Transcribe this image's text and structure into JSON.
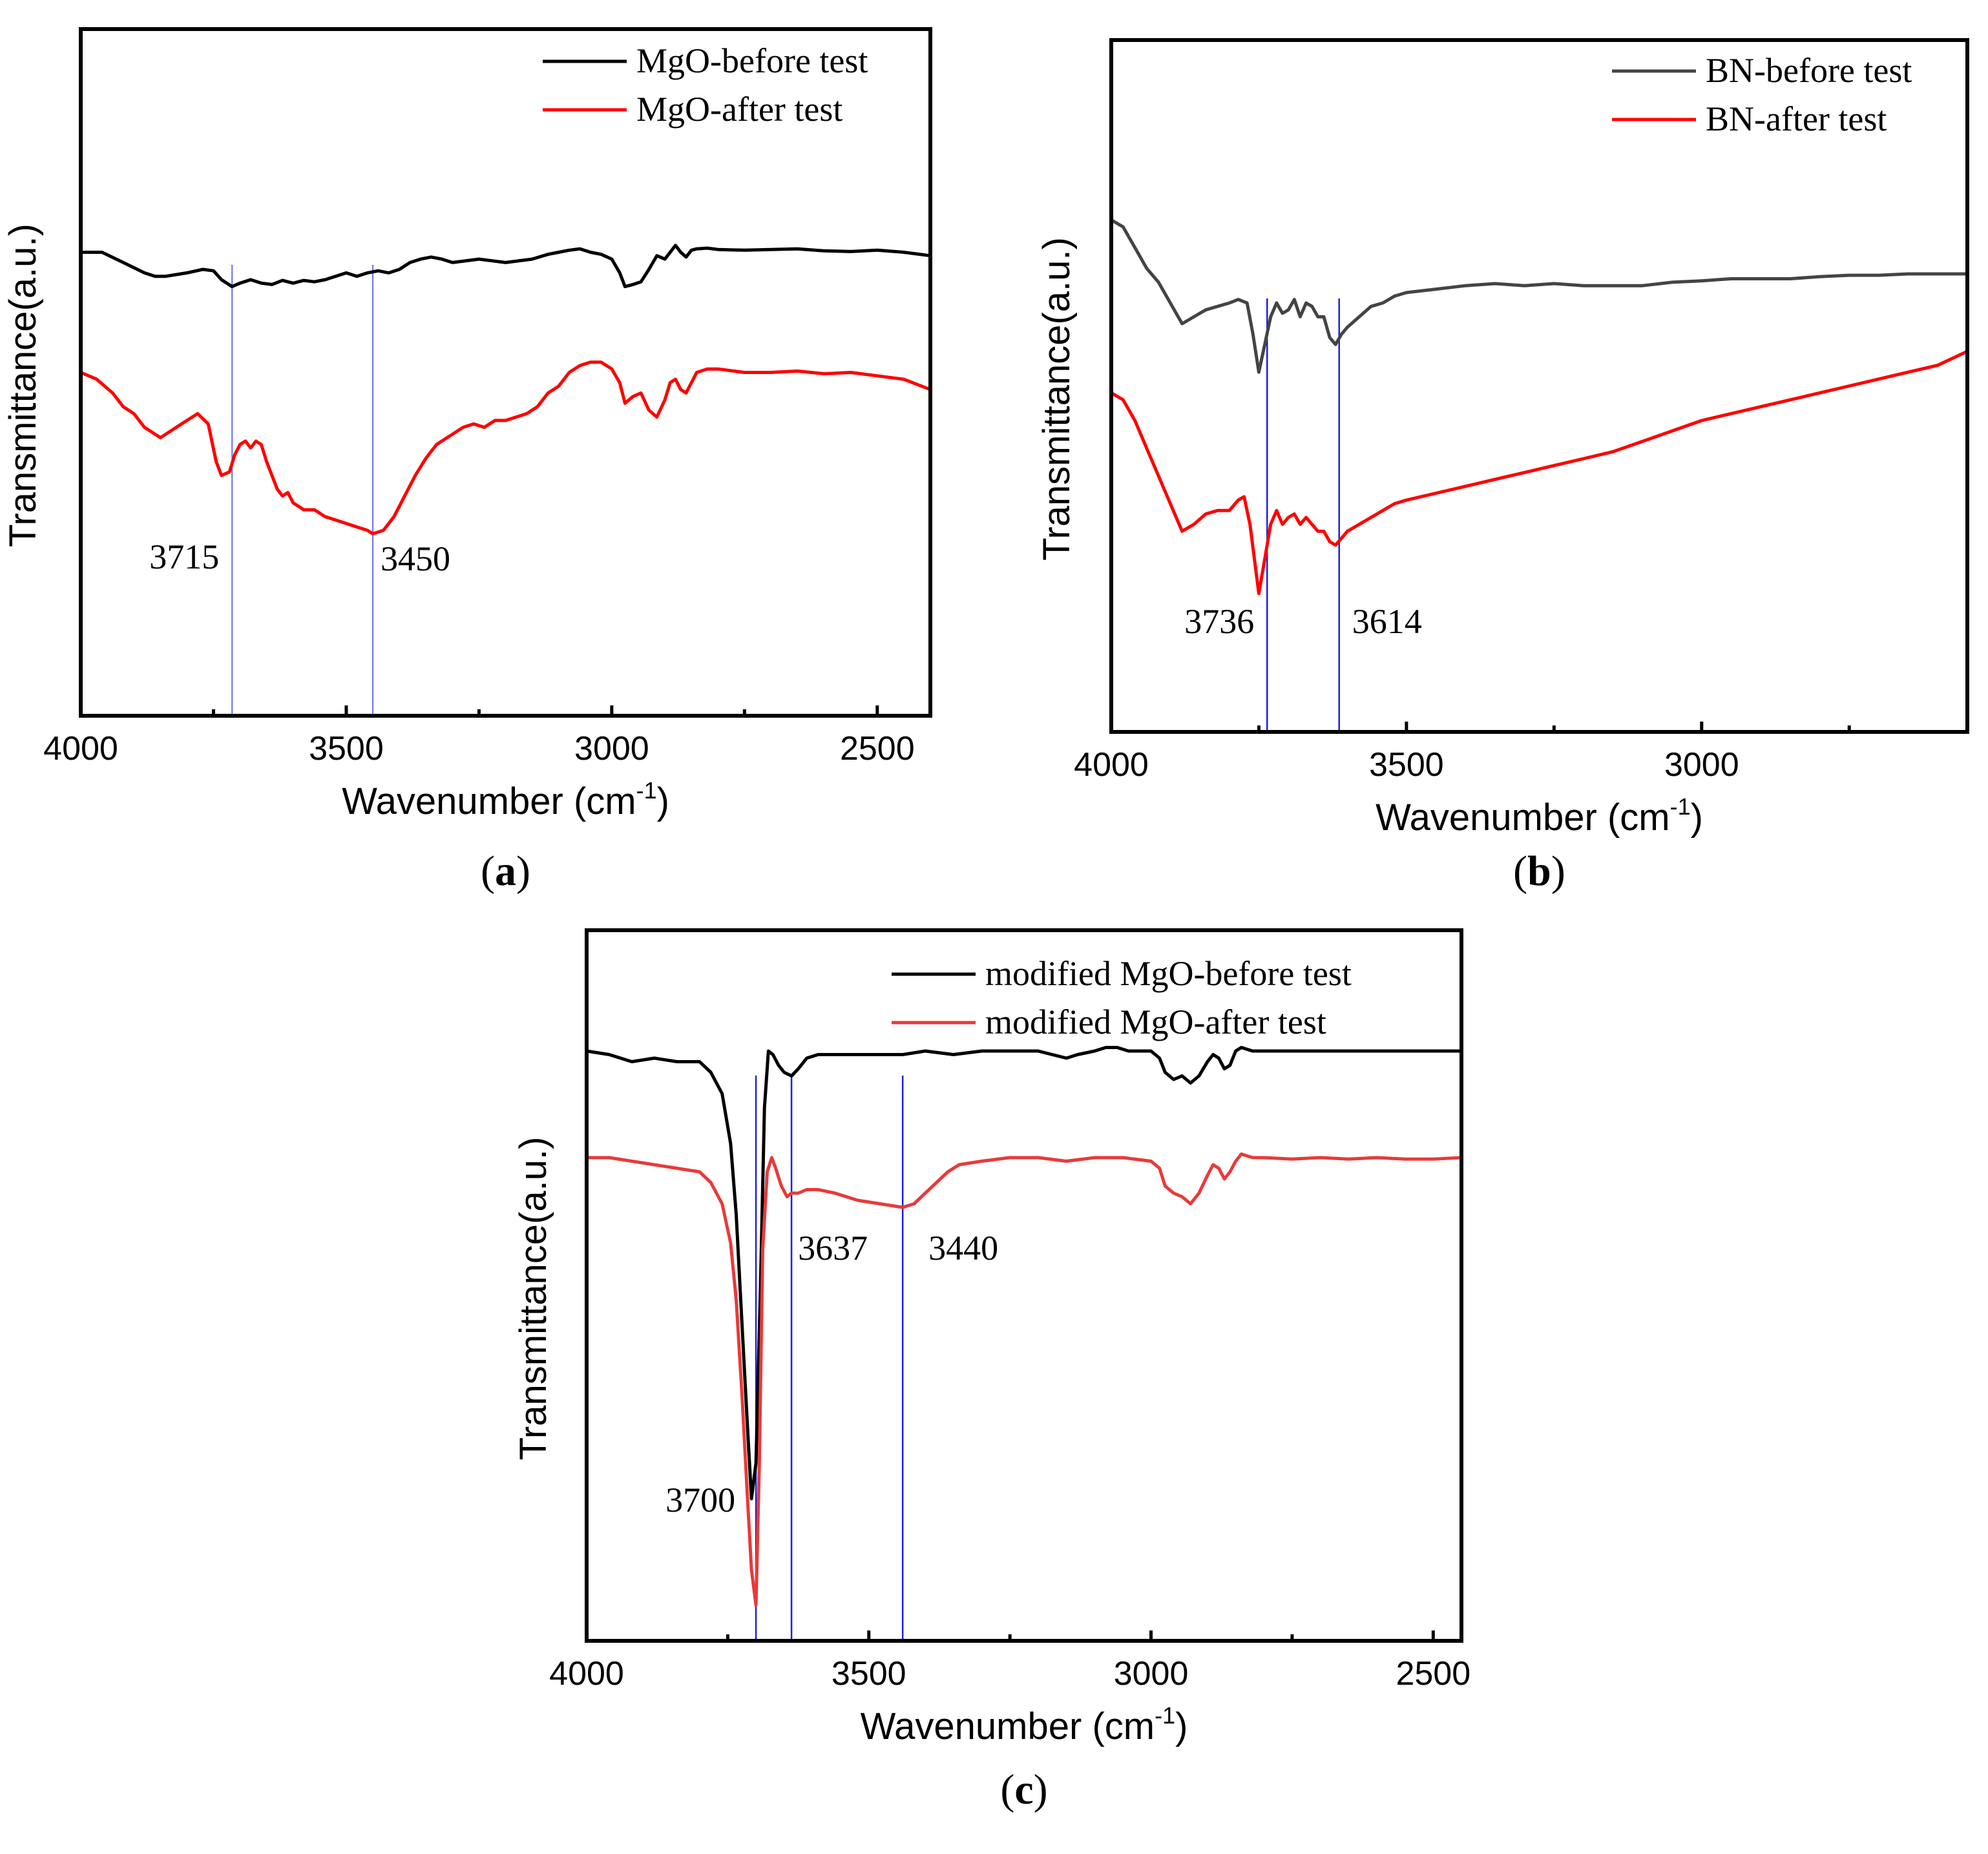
{
  "panels": [
    {
      "label": "a",
      "chart_data": {
        "type": "line",
        "title": "",
        "xlabel": "Wavenumber (cm",
        "xlabel_sup": "-1",
        "xlabel_close": ")",
        "ylabel": "Transmittance(a.u.)",
        "xlim": [
          4000,
          2400
        ],
        "ylim": [
          0,
          1
        ],
        "x_ticks": [
          4000,
          3500,
          3000,
          2500
        ],
        "x_tick_labels": [
          "4000",
          "3500",
          "3000",
          "2500"
        ],
        "minor_ticks": [
          3750,
          3250,
          2750
        ],
        "series": [
          {
            "name": "MgO-before  test",
            "color": "#000000",
            "x": [
              4000,
              3960,
              3920,
              3880,
              3860,
              3840,
              3800,
              3770,
              3750,
              3735,
              3715,
              3700,
              3680,
              3660,
              3640,
              3620,
              3600,
              3580,
              3560,
              3540,
              3520,
              3500,
              3480,
              3460,
              3440,
              3420,
              3400,
              3380,
              3360,
              3340,
              3320,
              3300,
              3250,
              3200,
              3150,
              3120,
              3100,
              3080,
              3060,
              3040,
              3020,
              3000,
              2985,
              2975,
              2960,
              2945,
              2930,
              2915,
              2900,
              2890,
              2880,
              2870,
              2860,
              2850,
              2840,
              2820,
              2800,
              2750,
              2700,
              2650,
              2600,
              2550,
              2500,
              2450,
              2400
            ],
            "y": [
              0.675,
              0.675,
              0.66,
              0.645,
              0.64,
              0.64,
              0.645,
              0.65,
              0.648,
              0.635,
              0.625,
              0.63,
              0.635,
              0.63,
              0.628,
              0.634,
              0.63,
              0.634,
              0.632,
              0.635,
              0.64,
              0.645,
              0.64,
              0.645,
              0.648,
              0.645,
              0.65,
              0.66,
              0.665,
              0.668,
              0.665,
              0.66,
              0.665,
              0.66,
              0.665,
              0.672,
              0.675,
              0.678,
              0.68,
              0.675,
              0.672,
              0.665,
              0.645,
              0.625,
              0.628,
              0.632,
              0.65,
              0.67,
              0.665,
              0.675,
              0.685,
              0.675,
              0.668,
              0.678,
              0.68,
              0.681,
              0.679,
              0.678,
              0.679,
              0.68,
              0.677,
              0.676,
              0.678,
              0.675,
              0.67
            ]
          },
          {
            "name": "MgO-after  test",
            "color": "#ff0000",
            "x": [
              4000,
              3970,
              3940,
              3920,
              3900,
              3880,
              3860,
              3850,
              3840,
              3820,
              3800,
              3780,
              3760,
              3745,
              3735,
              3720,
              3710,
              3700,
              3690,
              3680,
              3670,
              3660,
              3650,
              3640,
              3630,
              3620,
              3610,
              3600,
              3580,
              3560,
              3540,
              3520,
              3500,
              3480,
              3460,
              3450,
              3430,
              3410,
              3390,
              3370,
              3350,
              3330,
              3300,
              3280,
              3260,
              3240,
              3220,
              3200,
              3180,
              3160,
              3140,
              3120,
              3100,
              3080,
              3060,
              3040,
              3020,
              3000,
              2985,
              2975,
              2960,
              2945,
              2930,
              2915,
              2900,
              2890,
              2880,
              2870,
              2860,
              2850,
              2840,
              2820,
              2800,
              2750,
              2700,
              2650,
              2600,
              2550,
              2500,
              2450,
              2400
            ],
            "y": [
              0.5,
              0.49,
              0.47,
              0.45,
              0.44,
              0.42,
              0.41,
              0.405,
              0.41,
              0.42,
              0.43,
              0.44,
              0.425,
              0.37,
              0.35,
              0.355,
              0.38,
              0.395,
              0.4,
              0.39,
              0.4,
              0.395,
              0.37,
              0.35,
              0.33,
              0.32,
              0.325,
              0.31,
              0.3,
              0.3,
              0.29,
              0.285,
              0.28,
              0.275,
              0.27,
              0.265,
              0.27,
              0.29,
              0.32,
              0.35,
              0.375,
              0.395,
              0.41,
              0.42,
              0.425,
              0.42,
              0.43,
              0.43,
              0.435,
              0.44,
              0.45,
              0.47,
              0.48,
              0.5,
              0.51,
              0.515,
              0.515,
              0.505,
              0.485,
              0.455,
              0.465,
              0.47,
              0.445,
              0.435,
              0.46,
              0.485,
              0.49,
              0.475,
              0.47,
              0.485,
              0.5,
              0.505,
              0.505,
              0.5,
              0.5,
              0.502,
              0.498,
              0.5,
              0.495,
              0.49,
              0.475
            ]
          }
        ],
        "annotations": [
          {
            "text": "3715",
            "x": 3715
          },
          {
            "text": "3450",
            "x": 3450
          }
        ]
      }
    },
    {
      "label": "b",
      "chart_data": {
        "type": "line",
        "title": "",
        "xlabel": "Wavenumber (cm",
        "xlabel_sup": "-1",
        "xlabel_close": ")",
        "ylabel": "Transmittance(a.u.)",
        "xlim": [
          4000,
          2550
        ],
        "ylim": [
          0,
          1
        ],
        "x_ticks": [
          4000,
          3500,
          3000
        ],
        "x_tick_labels": [
          "4000",
          "3500",
          "3000"
        ],
        "minor_ticks": [
          3750,
          3250,
          2750
        ],
        "series": [
          {
            "name": "BN-before  test",
            "color": "#444444",
            "x": [
              4000,
              3980,
              3960,
              3940,
              3920,
              3900,
              3880,
              3860,
              3840,
              3820,
              3800,
              3785,
              3770,
              3760,
              3750,
              3740,
              3730,
              3720,
              3710,
              3700,
              3690,
              3680,
              3670,
              3660,
              3650,
              3640,
              3630,
              3620,
              3610,
              3600,
              3580,
              3560,
              3540,
              3520,
              3500,
              3450,
              3400,
              3350,
              3300,
              3250,
              3200,
              3150,
              3100,
              3050,
              3000,
              2950,
              2900,
              2850,
              2800,
              2750,
              2700,
              2650,
              2600,
              2550
            ],
            "y": [
              0.74,
              0.73,
              0.7,
              0.67,
              0.65,
              0.62,
              0.59,
              0.6,
              0.61,
              0.615,
              0.62,
              0.625,
              0.62,
              0.575,
              0.52,
              0.56,
              0.6,
              0.62,
              0.605,
              0.61,
              0.625,
              0.6,
              0.62,
              0.615,
              0.6,
              0.6,
              0.57,
              0.56,
              0.575,
              0.585,
              0.6,
              0.615,
              0.62,
              0.63,
              0.635,
              0.64,
              0.645,
              0.648,
              0.645,
              0.648,
              0.645,
              0.645,
              0.645,
              0.65,
              0.652,
              0.655,
              0.655,
              0.655,
              0.658,
              0.66,
              0.66,
              0.662,
              0.662,
              0.662
            ]
          },
          {
            "name": "BN-after  test",
            "color": "#ff0000",
            "x": [
              4000,
              3980,
              3960,
              3940,
              3920,
              3900,
              3880,
              3860,
              3840,
              3820,
              3800,
              3785,
              3775,
              3765,
              3750,
              3740,
              3730,
              3720,
              3710,
              3700,
              3690,
              3680,
              3670,
              3660,
              3650,
              3640,
              3630,
              3620,
              3610,
              3600,
              3580,
              3560,
              3540,
              3520,
              3500,
              3450,
              3400,
              3350,
              3300,
              3250,
              3200,
              3150,
              3100,
              3050,
              3000,
              2950,
              2900,
              2850,
              2800,
              2750,
              2700,
              2650,
              2600,
              2550
            ],
            "y": [
              0.49,
              0.48,
              0.45,
              0.41,
              0.37,
              0.33,
              0.29,
              0.3,
              0.315,
              0.32,
              0.32,
              0.335,
              0.34,
              0.3,
              0.2,
              0.25,
              0.3,
              0.32,
              0.3,
              0.31,
              0.315,
              0.3,
              0.31,
              0.3,
              0.29,
              0.29,
              0.275,
              0.27,
              0.28,
              0.29,
              0.3,
              0.31,
              0.32,
              0.33,
              0.335,
              0.345,
              0.355,
              0.365,
              0.375,
              0.385,
              0.395,
              0.405,
              0.42,
              0.435,
              0.45,
              0.46,
              0.47,
              0.48,
              0.49,
              0.5,
              0.51,
              0.52,
              0.53,
              0.55
            ]
          }
        ],
        "annotations": [
          {
            "text": "3736",
            "x": 3736
          },
          {
            "text": "3614",
            "x": 3614
          }
        ]
      }
    },
    {
      "label": "c",
      "chart_data": {
        "type": "line",
        "title": "",
        "xlabel": "Wavenumber (cm",
        "xlabel_sup": "-1",
        "xlabel_close": ")",
        "ylabel": "Transmittance(a.u.)",
        "xlim": [
          4000,
          2450
        ],
        "ylim": [
          0,
          1
        ],
        "x_ticks": [
          4000,
          3500,
          3000,
          2500
        ],
        "x_tick_labels": [
          "4000",
          "3500",
          "3000",
          "2500"
        ],
        "minor_ticks": [
          3750,
          3250,
          2750
        ],
        "series": [
          {
            "name": "modified MgO-before  test",
            "color": "#000000",
            "x": [
              4000,
              3960,
              3920,
              3880,
              3840,
              3800,
              3780,
              3760,
              3745,
              3735,
              3725,
              3715,
              3708,
              3700,
              3692,
              3685,
              3678,
              3670,
              3660,
              3650,
              3637,
              3625,
              3610,
              3590,
              3560,
              3520,
              3480,
              3440,
              3400,
              3350,
              3300,
              3250,
              3200,
              3150,
              3130,
              3100,
              3080,
              3060,
              3040,
              3020,
              3000,
              2985,
              2975,
              2960,
              2945,
              2930,
              2915,
              2900,
              2890,
              2880,
              2870,
              2860,
              2850,
              2840,
              2820,
              2800,
              2750,
              2700,
              2650,
              2600,
              2550,
              2500,
              2450
            ],
            "y": [
              0.83,
              0.825,
              0.815,
              0.82,
              0.815,
              0.815,
              0.8,
              0.77,
              0.7,
              0.6,
              0.45,
              0.3,
              0.2,
              0.25,
              0.5,
              0.75,
              0.83,
              0.825,
              0.81,
              0.8,
              0.795,
              0.805,
              0.82,
              0.825,
              0.825,
              0.825,
              0.825,
              0.825,
              0.83,
              0.825,
              0.83,
              0.83,
              0.83,
              0.82,
              0.825,
              0.83,
              0.835,
              0.835,
              0.83,
              0.83,
              0.83,
              0.82,
              0.8,
              0.79,
              0.795,
              0.785,
              0.795,
              0.815,
              0.825,
              0.82,
              0.805,
              0.81,
              0.83,
              0.835,
              0.83,
              0.83,
              0.83,
              0.83,
              0.83,
              0.83,
              0.83,
              0.83,
              0.83
            ]
          },
          {
            "name": "modified MgO-after  test",
            "color": "#e83a3a",
            "x": [
              4000,
              3960,
              3920,
              3880,
              3840,
              3800,
              3780,
              3760,
              3745,
              3735,
              3725,
              3715,
              3708,
              3700,
              3694,
              3688,
              3680,
              3672,
              3665,
              3655,
              3645,
              3637,
              3625,
              3610,
              3590,
              3560,
              3520,
              3480,
              3440,
              3420,
              3400,
              3380,
              3360,
              3340,
              3300,
              3250,
              3200,
              3150,
              3100,
              3050,
              3000,
              2985,
              2975,
              2960,
              2945,
              2930,
              2915,
              2900,
              2890,
              2880,
              2870,
              2860,
              2850,
              2840,
              2820,
              2800,
              2750,
              2700,
              2650,
              2600,
              2550,
              2500,
              2450
            ],
            "y": [
              0.68,
              0.68,
              0.675,
              0.67,
              0.665,
              0.66,
              0.645,
              0.615,
              0.56,
              0.48,
              0.35,
              0.2,
              0.1,
              0.05,
              0.25,
              0.55,
              0.66,
              0.68,
              0.665,
              0.64,
              0.625,
              0.63,
              0.63,
              0.635,
              0.635,
              0.63,
              0.62,
              0.615,
              0.61,
              0.615,
              0.63,
              0.645,
              0.66,
              0.67,
              0.675,
              0.68,
              0.68,
              0.675,
              0.68,
              0.68,
              0.675,
              0.665,
              0.64,
              0.63,
              0.625,
              0.615,
              0.63,
              0.655,
              0.67,
              0.665,
              0.65,
              0.66,
              0.675,
              0.685,
              0.68,
              0.68,
              0.678,
              0.68,
              0.678,
              0.68,
              0.678,
              0.678,
              0.68
            ]
          }
        ],
        "annotations": [
          {
            "text": "3700",
            "x": 3700
          },
          {
            "text": "3637",
            "x": 3637
          },
          {
            "text": "3440",
            "x": 3440
          }
        ]
      }
    }
  ],
  "colors": {
    "marker_line": "#1f1fd8",
    "marker_line_light": "#6b6bf0",
    "axis": "#000000"
  }
}
